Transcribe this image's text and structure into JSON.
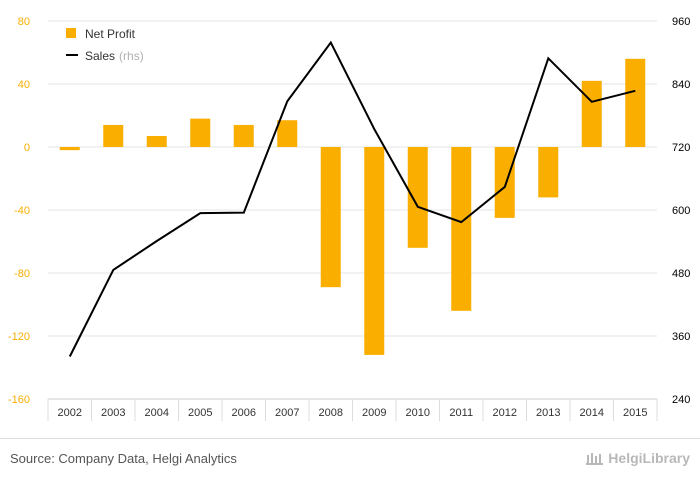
{
  "chart_data": {
    "type": "bar+line",
    "categories": [
      "2002",
      "2003",
      "2004",
      "2005",
      "2006",
      "2007",
      "2008",
      "2009",
      "2010",
      "2011",
      "2012",
      "2013",
      "2014",
      "2015"
    ],
    "series": [
      {
        "name": "Net Profit",
        "type": "bar",
        "axis": "left",
        "color": "#f9ae00",
        "values": [
          -2,
          14,
          7,
          18,
          14,
          17,
          -89,
          -132,
          -64,
          -104,
          -45,
          -32,
          42,
          56
        ]
      },
      {
        "name": "Sales",
        "type": "line",
        "axis": "right",
        "color": "#000000",
        "values": [
          321,
          486,
          541,
          594,
          595,
          807,
          919,
          754,
          606,
          577,
          644,
          889,
          806,
          827
        ]
      }
    ],
    "legend": {
      "bar_label": "Net Profit",
      "line_label": "Sales",
      "line_suffix": "(rhs)"
    },
    "y_left": {
      "min": -160,
      "max": 80,
      "ticks": [
        "80",
        "40",
        "0",
        "-40",
        "-80",
        "-120",
        "-160"
      ]
    },
    "y_right": {
      "min": 240,
      "max": 960,
      "ticks": [
        "960",
        "840",
        "720",
        "600",
        "480",
        "360",
        "240"
      ]
    },
    "colors": {
      "left_axis_text": "#f9ae00",
      "right_axis_text": "#000000",
      "grid": "#e6e6e6"
    }
  },
  "footer": {
    "source": "Source: Company Data, Helgi Analytics",
    "brand": "HelgiLibrary"
  }
}
